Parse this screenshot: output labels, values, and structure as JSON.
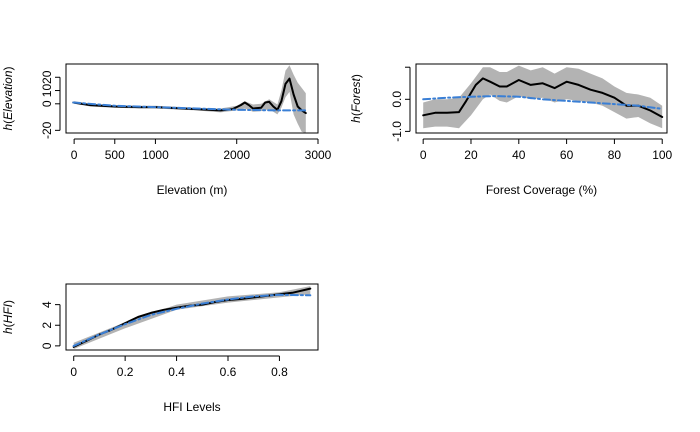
{
  "chart_data": [
    {
      "type": "line",
      "xlabel": "Elevation (m)",
      "ylabel_prefix": "h(",
      "ylabel_var": "Elevation",
      "ylabel_suffix": ")",
      "xlim": [
        -100,
        3000
      ],
      "ylim": [
        -22,
        30
      ],
      "xticks": [
        0,
        500,
        1000,
        2000,
        3000
      ],
      "yticks": [
        -20,
        0,
        10,
        20
      ],
      "band": {
        "x": [
          0,
          200,
          500,
          800,
          1000,
          1500,
          1800,
          2000,
          2100,
          2200,
          2300,
          2400,
          2500,
          2550,
          2600,
          2650,
          2700,
          2750,
          2800,
          2850
        ],
        "upper": [
          2,
          0,
          -1,
          -1.5,
          -1.5,
          -3,
          -3.5,
          -1.5,
          2,
          -0.5,
          0,
          3.5,
          -0.5,
          10,
          25,
          29,
          22,
          16,
          12,
          8
        ],
        "lower": [
          0,
          -2,
          -3,
          -3.5,
          -3.5,
          -5,
          -6.5,
          -5,
          -3.5,
          -6,
          -5.5,
          -4,
          -8,
          -3,
          5,
          9,
          -8,
          -15,
          -21,
          -22
        ]
      },
      "series": [
        {
          "style": "solid",
          "color": "#000000",
          "x": [
            -10,
            200,
            500,
            800,
            1000,
            1500,
            1800,
            1950,
            2050,
            2100,
            2150,
            2200,
            2300,
            2350,
            2400,
            2450,
            2500,
            2550,
            2600,
            2650,
            2700,
            2750,
            2800,
            2850
          ],
          "y": [
            1,
            -1,
            -2,
            -2.5,
            -2.5,
            -4,
            -5,
            -4,
            -1,
            1,
            -1,
            -3.5,
            -3,
            1,
            1.5,
            -2,
            -4.5,
            2,
            15,
            19,
            7,
            -2,
            -5,
            -7
          ]
        },
        {
          "style": "dashdot",
          "color": "#3a7fd5",
          "x": [
            -10,
            500,
            1000,
            1500,
            2000,
            2500,
            2850
          ],
          "y": [
            1,
            -1.5,
            -2.5,
            -3.5,
            -4.5,
            -5,
            -5
          ]
        }
      ]
    },
    {
      "type": "line",
      "xlabel": "Forest Coverage (%)",
      "ylabel_prefix": "h(",
      "ylabel_var": "Forest",
      "ylabel_suffix": ")",
      "xlim": [
        -3,
        102
      ],
      "ylim": [
        -1.05,
        1.1
      ],
      "xticks": [
        0,
        20,
        40,
        60,
        80,
        100
      ],
      "yticks": [
        -1.0,
        0.0,
        1.0
      ],
      "ytick_labels": [
        "-1.0",
        "0.0",
        ""
      ],
      "band": {
        "x": [
          0,
          5,
          10,
          15,
          20,
          25,
          28,
          32,
          35,
          40,
          45,
          50,
          55,
          60,
          65,
          70,
          75,
          80,
          85,
          90,
          95,
          100
        ],
        "upper": [
          -0.1,
          0.0,
          0.0,
          0.05,
          0.5,
          1.0,
          1.0,
          0.85,
          0.85,
          1.05,
          0.9,
          1.0,
          0.8,
          1.0,
          0.95,
          0.8,
          0.65,
          0.4,
          0.2,
          0.15,
          0.05,
          -0.2
        ],
        "lower": [
          -0.9,
          -0.85,
          -0.85,
          -0.9,
          -0.5,
          0.0,
          0.15,
          -0.05,
          -0.1,
          0.1,
          0.0,
          0.05,
          -0.1,
          0.0,
          -0.05,
          -0.1,
          -0.2,
          -0.4,
          -0.6,
          -0.55,
          -0.75,
          -0.9
        ]
      },
      "series": [
        {
          "style": "solid",
          "color": "#000000",
          "x": [
            0,
            5,
            10,
            15,
            18,
            22,
            25,
            28,
            32,
            35,
            40,
            45,
            50,
            55,
            60,
            65,
            70,
            75,
            80,
            85,
            90,
            95,
            100
          ],
          "y": [
            -0.5,
            -0.42,
            -0.42,
            -0.4,
            -0.05,
            0.45,
            0.65,
            0.55,
            0.4,
            0.4,
            0.6,
            0.45,
            0.5,
            0.35,
            0.55,
            0.45,
            0.3,
            0.2,
            0.05,
            -0.2,
            -0.2,
            -0.35,
            -0.55
          ]
        },
        {
          "style": "dashdot",
          "color": "#3a7fd5",
          "x": [
            0,
            10,
            20,
            30,
            40,
            50,
            60,
            70,
            80,
            90,
            100
          ],
          "y": [
            0.0,
            0.05,
            0.08,
            0.1,
            0.08,
            0.0,
            -0.05,
            -0.1,
            -0.15,
            -0.2,
            -0.3
          ]
        }
      ]
    },
    {
      "type": "line",
      "xlabel": "HFI Levels",
      "ylabel_prefix": "h(",
      "ylabel_var": "HFI",
      "ylabel_suffix": ")",
      "xlim": [
        -0.03,
        0.95
      ],
      "ylim": [
        -0.4,
        6.0
      ],
      "xticks": [
        0.0,
        0.2,
        0.4,
        0.6,
        0.8
      ],
      "yticks": [
        0,
        2,
        4
      ],
      "band": {
        "x": [
          0.0,
          0.2,
          0.4,
          0.6,
          0.8,
          0.92
        ],
        "upper": [
          0.3,
          2.3,
          4.0,
          4.8,
          5.2,
          5.8
        ],
        "lower": [
          -0.3,
          1.7,
          3.5,
          4.2,
          4.7,
          5.0
        ]
      },
      "series": [
        {
          "style": "solid",
          "color": "#000000",
          "x": [
            0.0,
            0.05,
            0.1,
            0.15,
            0.2,
            0.25,
            0.3,
            0.35,
            0.4,
            0.45,
            0.5,
            0.55,
            0.6,
            0.65,
            0.7,
            0.75,
            0.8,
            0.85,
            0.92
          ],
          "y": [
            -0.1,
            0.5,
            1.1,
            1.6,
            2.2,
            2.8,
            3.2,
            3.5,
            3.7,
            3.9,
            4.0,
            4.25,
            4.45,
            4.55,
            4.7,
            4.85,
            5.0,
            5.15,
            5.55
          ]
        },
        {
          "style": "dashdot",
          "color": "#3a7fd5",
          "x": [
            0.0,
            0.1,
            0.2,
            0.3,
            0.4,
            0.5,
            0.6,
            0.7,
            0.8,
            0.92
          ],
          "y": [
            0.0,
            1.1,
            2.1,
            3.0,
            3.6,
            4.1,
            4.5,
            4.8,
            4.95,
            4.9
          ]
        }
      ]
    }
  ]
}
